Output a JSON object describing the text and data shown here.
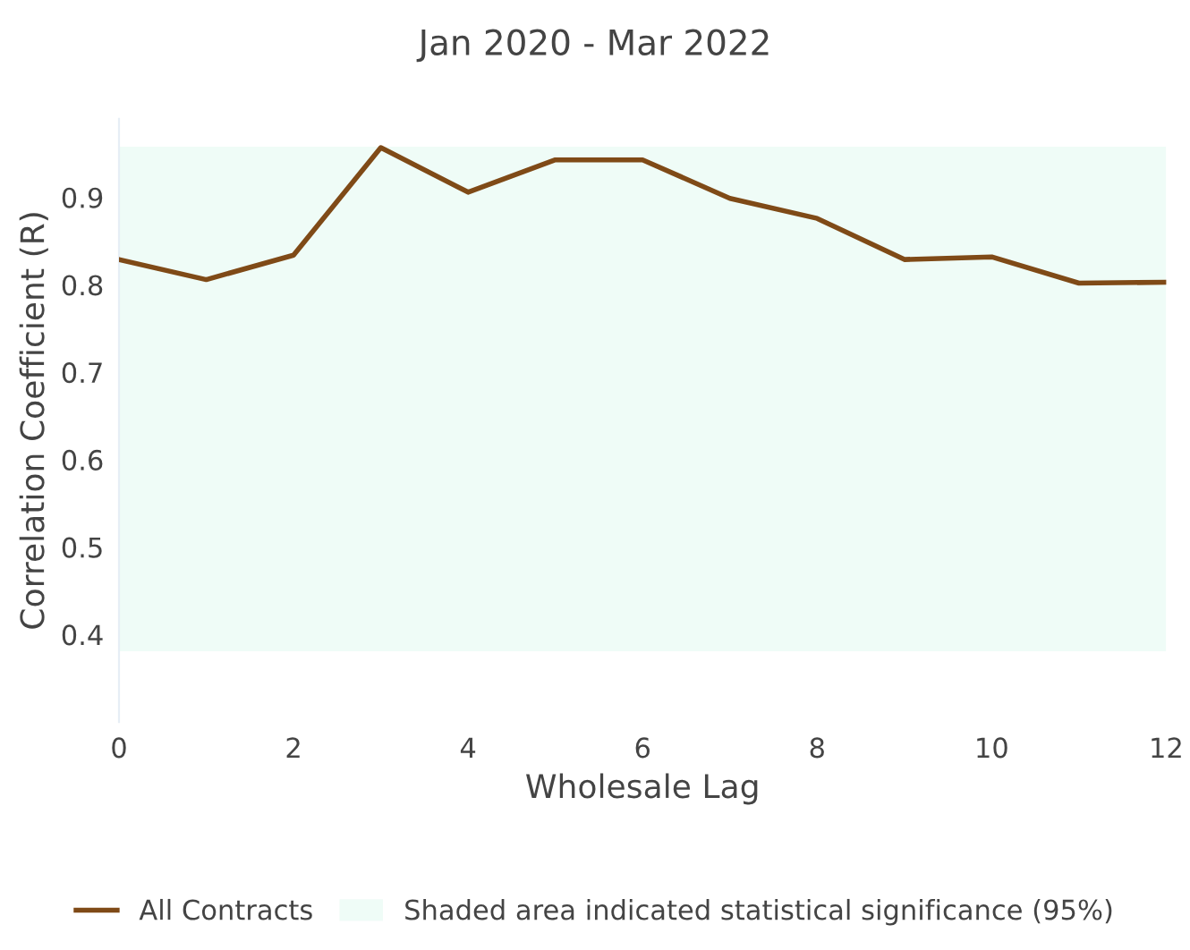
{
  "chart_data": {
    "type": "line",
    "title": "Jan 2020 - Mar 2022",
    "xlabel": "Wholesale Lag",
    "ylabel": "Correlation Coefficient (R)",
    "x": [
      0,
      1,
      2,
      3,
      4,
      5,
      6,
      7,
      8,
      9,
      10,
      11,
      12
    ],
    "series": [
      {
        "name": "All Contracts",
        "color": "#7f4a17",
        "values": [
          0.829,
          0.806,
          0.834,
          0.957,
          0.906,
          0.943,
          0.943,
          0.899,
          0.876,
          0.829,
          0.832,
          0.802,
          0.803
        ]
      }
    ],
    "bands": [
      {
        "axis": "y",
        "from": 0.381,
        "to": 0.958,
        "label": "Shaded area indicated statistical significance (95%)",
        "color": "#effcf7"
      }
    ],
    "xlim": [
      0,
      12
    ],
    "xticks": [
      0,
      2,
      4,
      6,
      8,
      10,
      12
    ],
    "ylim": [
      0.3,
      0.99
    ],
    "yticks": [
      0.4,
      0.5,
      0.6,
      0.7,
      0.8,
      0.9
    ],
    "grid": false,
    "legend": "bottom",
    "marker": "none",
    "line_style": "solid"
  }
}
